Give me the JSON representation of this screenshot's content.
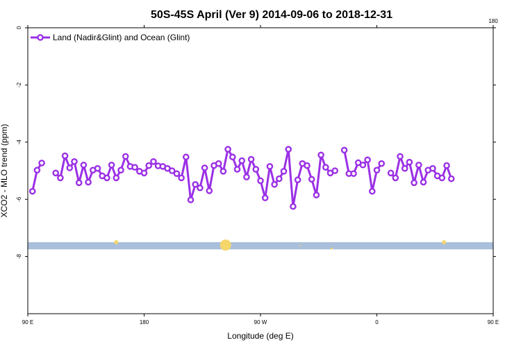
{
  "chart_data": {
    "type": "line",
    "title": "50S-45S April (Ver 9)   2014-09-06 to 2018-12-31",
    "xlabel": "Longitude (deg E)",
    "ylabel": "XCO2 - MLO trend (ppm)",
    "xlim": [
      90,
      450
    ],
    "ylim": [
      -10,
      0
    ],
    "x_ticks": [
      {
        "value": 90,
        "label": "90 E"
      },
      {
        "value": 180,
        "label": "180"
      },
      {
        "value": 270,
        "label": "90 W"
      },
      {
        "value": 360,
        "label": "0"
      },
      {
        "value": 450,
        "label": "90 E"
      }
    ],
    "x_ticks_top": [
      {
        "value": 450,
        "label": "180"
      }
    ],
    "y_ticks": [
      {
        "value": 0,
        "label": "0"
      },
      {
        "value": -2,
        "label": "-2"
      },
      {
        "value": -4,
        "label": "-4"
      },
      {
        "value": -6,
        "label": "-6"
      },
      {
        "value": -8,
        "label": "-8"
      }
    ],
    "legend_position": "top-left",
    "series": [
      {
        "name": "Land (Nadir&Glint) and Ocean (Glint)",
        "color": "#9b30e6",
        "segments": [
          [
            [
              93.6,
              -5.72
            ],
            [
              97.2,
              -4.98
            ],
            [
              100.8,
              -4.73
            ]
          ],
          [
            [
              111.6,
              -5.08
            ],
            [
              115.2,
              -5.25
            ],
            [
              118.8,
              -4.48
            ],
            [
              122.4,
              -4.9
            ],
            [
              126,
              -4.68
            ],
            [
              129.6,
              -5.42
            ],
            [
              133.2,
              -4.8
            ],
            [
              136.8,
              -5.4
            ],
            [
              140.4,
              -4.98
            ],
            [
              144,
              -4.92
            ],
            [
              147.6,
              -5.18
            ],
            [
              151.2,
              -5.25
            ],
            [
              154.8,
              -4.8
            ],
            [
              158.4,
              -5.25
            ],
            [
              162,
              -4.98
            ],
            [
              165.6,
              -4.5
            ],
            [
              169.2,
              -4.85
            ],
            [
              172.8,
              -4.88
            ],
            [
              176.4,
              -5.02
            ],
            [
              180,
              -5.08
            ],
            [
              183.6,
              -4.82
            ],
            [
              187.2,
              -4.68
            ],
            [
              190.8,
              -4.83
            ],
            [
              194.4,
              -4.85
            ],
            [
              198,
              -4.92
            ],
            [
              201.6,
              -5.0
            ],
            [
              205.2,
              -5.1
            ],
            [
              208.8,
              -5.25
            ],
            [
              212.4,
              -4.52
            ],
            [
              216,
              -6.02
            ],
            [
              219.6,
              -5.48
            ],
            [
              223.2,
              -5.6
            ],
            [
              226.8,
              -4.9
            ],
            [
              230.4,
              -5.7
            ],
            [
              234,
              -4.82
            ],
            [
              237.6,
              -4.75
            ],
            [
              241.2,
              -5.02
            ],
            [
              244.8,
              -4.25
            ],
            [
              248.4,
              -4.52
            ],
            [
              252,
              -4.95
            ],
            [
              255.6,
              -4.65
            ],
            [
              259.2,
              -5.22
            ],
            [
              262.8,
              -4.6
            ],
            [
              266.4,
              -4.95
            ],
            [
              270,
              -5.35
            ],
            [
              273.6,
              -5.95
            ],
            [
              277.2,
              -4.85
            ],
            [
              280.8,
              -5.48
            ],
            [
              284.4,
              -5.28
            ],
            [
              288,
              -5.02
            ],
            [
              291.6,
              -4.25
            ],
            [
              295.2,
              -6.25
            ],
            [
              298.8,
              -5.32
            ],
            [
              302.4,
              -4.75
            ],
            [
              306,
              -4.82
            ],
            [
              309.6,
              -5.3
            ],
            [
              313.2,
              -5.85
            ],
            [
              316.8,
              -4.45
            ],
            [
              320.4,
              -4.88
            ],
            [
              324,
              -5.08
            ],
            [
              327.6,
              -5.0
            ]
          ],
          [
            [
              334.8,
              -4.28
            ],
            [
              338.4,
              -5.1
            ],
            [
              342,
              -5.1
            ],
            [
              345.6,
              -4.72
            ],
            [
              349.2,
              -4.8
            ],
            [
              352.8,
              -4.62
            ],
            [
              356.4,
              -5.72
            ],
            [
              360,
              -4.98
            ],
            [
              363.6,
              -4.75
            ]
          ],
          [
            [
              370.8,
              -5.08
            ],
            [
              374.4,
              -5.25
            ],
            [
              378,
              -4.5
            ],
            [
              381.6,
              -4.92
            ],
            [
              385.2,
              -4.7
            ],
            [
              388.8,
              -5.42
            ],
            [
              392.4,
              -4.8
            ],
            [
              396,
              -5.4
            ],
            [
              399.6,
              -4.98
            ],
            [
              403.2,
              -4.92
            ],
            [
              406.8,
              -5.18
            ],
            [
              410.4,
              -5.25
            ],
            [
              414,
              -4.82
            ],
            [
              417.6,
              -5.28
            ]
          ]
        ]
      }
    ],
    "bottom_band": {
      "y_range": [
        -7.75,
        -7.5
      ],
      "color": "#a9bfdb",
      "markers": [
        {
          "x": 158.4,
          "y": -7.5,
          "size": 3
        },
        {
          "x": 243.0,
          "y": -7.6,
          "size": 8
        },
        {
          "x": 301.0,
          "y": -7.62,
          "size": 1
        },
        {
          "x": 325.0,
          "y": -7.72,
          "size": 1.5
        },
        {
          "x": 412.0,
          "y": -7.5,
          "size": 3
        }
      ],
      "marker_color": "#f5d66b"
    }
  }
}
